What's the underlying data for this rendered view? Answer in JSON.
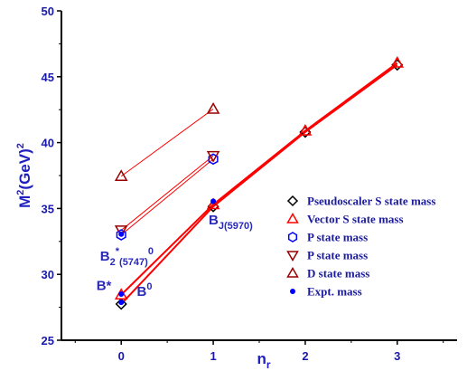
{
  "chart_data": {
    "type": "scatter",
    "title": "",
    "xlabel": "n",
    "xlabel_sub": "r",
    "ylabel": "M",
    "ylabel_sup": "2",
    "ylabel_rest": "(GeV)",
    "ylabel_sup2": "2",
    "xlim": [
      -0.65,
      3.65
    ],
    "ylim": [
      25,
      50
    ],
    "x_ticks": [
      0,
      1,
      2,
      3
    ],
    "x_tick_labels": [
      "0",
      "1",
      "2",
      "3"
    ],
    "y_ticks": [
      25,
      30,
      35,
      40,
      45,
      50
    ],
    "y_tick_labels": [
      "25",
      "30",
      "35",
      "40",
      "45",
      "50"
    ],
    "grid": false,
    "legend_position": "right",
    "series": [
      {
        "name": "Pseudoscaler S state mass",
        "marker": "diamond",
        "color": "#000000",
        "x": [
          0,
          1,
          2,
          3
        ],
        "y": [
          27.75,
          35.15,
          40.8,
          45.9
        ]
      },
      {
        "name": "Vector S state mass",
        "marker": "triangle-up",
        "color": "#ff0000",
        "x": [
          0,
          1,
          2,
          3
        ],
        "y": [
          28.45,
          35.3,
          40.9,
          46.05
        ]
      },
      {
        "name": "P state mass",
        "marker": "hexagon",
        "color": "#0000ff",
        "x": [
          0,
          1
        ],
        "y": [
          33.0,
          38.75
        ]
      },
      {
        "name": "P state mass",
        "marker": "triangle-down",
        "color": "#990000",
        "x": [
          0,
          1
        ],
        "y": [
          33.35,
          39.0
        ]
      },
      {
        "name": "D state mass",
        "marker": "triangle-up",
        "color": "#990000",
        "x": [
          0,
          1
        ],
        "y": [
          37.45,
          42.55
        ]
      },
      {
        "name": "Expt. mass",
        "marker": "dot",
        "color": "#0000ff",
        "x": [
          0,
          0,
          0,
          1
        ],
        "y": [
          27.88,
          28.5,
          33.05,
          35.55
        ]
      }
    ],
    "fit_lines": [
      {
        "color": "#ff0000",
        "width": 2.0,
        "x": [
          0,
          1,
          2,
          3
        ],
        "y": [
          27.75,
          35.15,
          40.8,
          45.9
        ]
      },
      {
        "color": "#ff0000",
        "width": 2.0,
        "x": [
          0,
          1,
          2,
          3
        ],
        "y": [
          28.45,
          35.3,
          40.9,
          46.05
        ]
      },
      {
        "color": "#ff0000",
        "width": 1.0,
        "x": [
          0,
          1
        ],
        "y": [
          33.0,
          38.75
        ]
      },
      {
        "color": "#ff0000",
        "width": 1.0,
        "x": [
          0,
          1
        ],
        "y": [
          33.35,
          39.0
        ]
      },
      {
        "color": "#ff0000",
        "width": 1.0,
        "x": [
          0,
          1
        ],
        "y": [
          37.45,
          42.55
        ]
      }
    ],
    "annotations": [
      {
        "parts": [
          {
            "t": "B"
          },
          {
            "t": "2",
            "sub": true
          },
          {
            "t": "*",
            "sup": true
          },
          {
            "t": "(5747)",
            "sub": true
          },
          {
            "t": "0",
            "sup": true
          }
        ],
        "x": -0.23,
        "y": 31.05
      },
      {
        "parts": [
          {
            "t": "B*"
          }
        ],
        "x": -0.27,
        "y": 28.8
      },
      {
        "parts": [
          {
            "t": "B"
          },
          {
            "t": "0",
            "sup": true
          }
        ],
        "x": 0.17,
        "y": 28.35
      },
      {
        "parts": [
          {
            "t": "B"
          },
          {
            "t": "J",
            "sub": true
          },
          {
            "t": "(5970)",
            "sub": true
          }
        ],
        "x": 0.95,
        "y": 33.8
      }
    ]
  }
}
